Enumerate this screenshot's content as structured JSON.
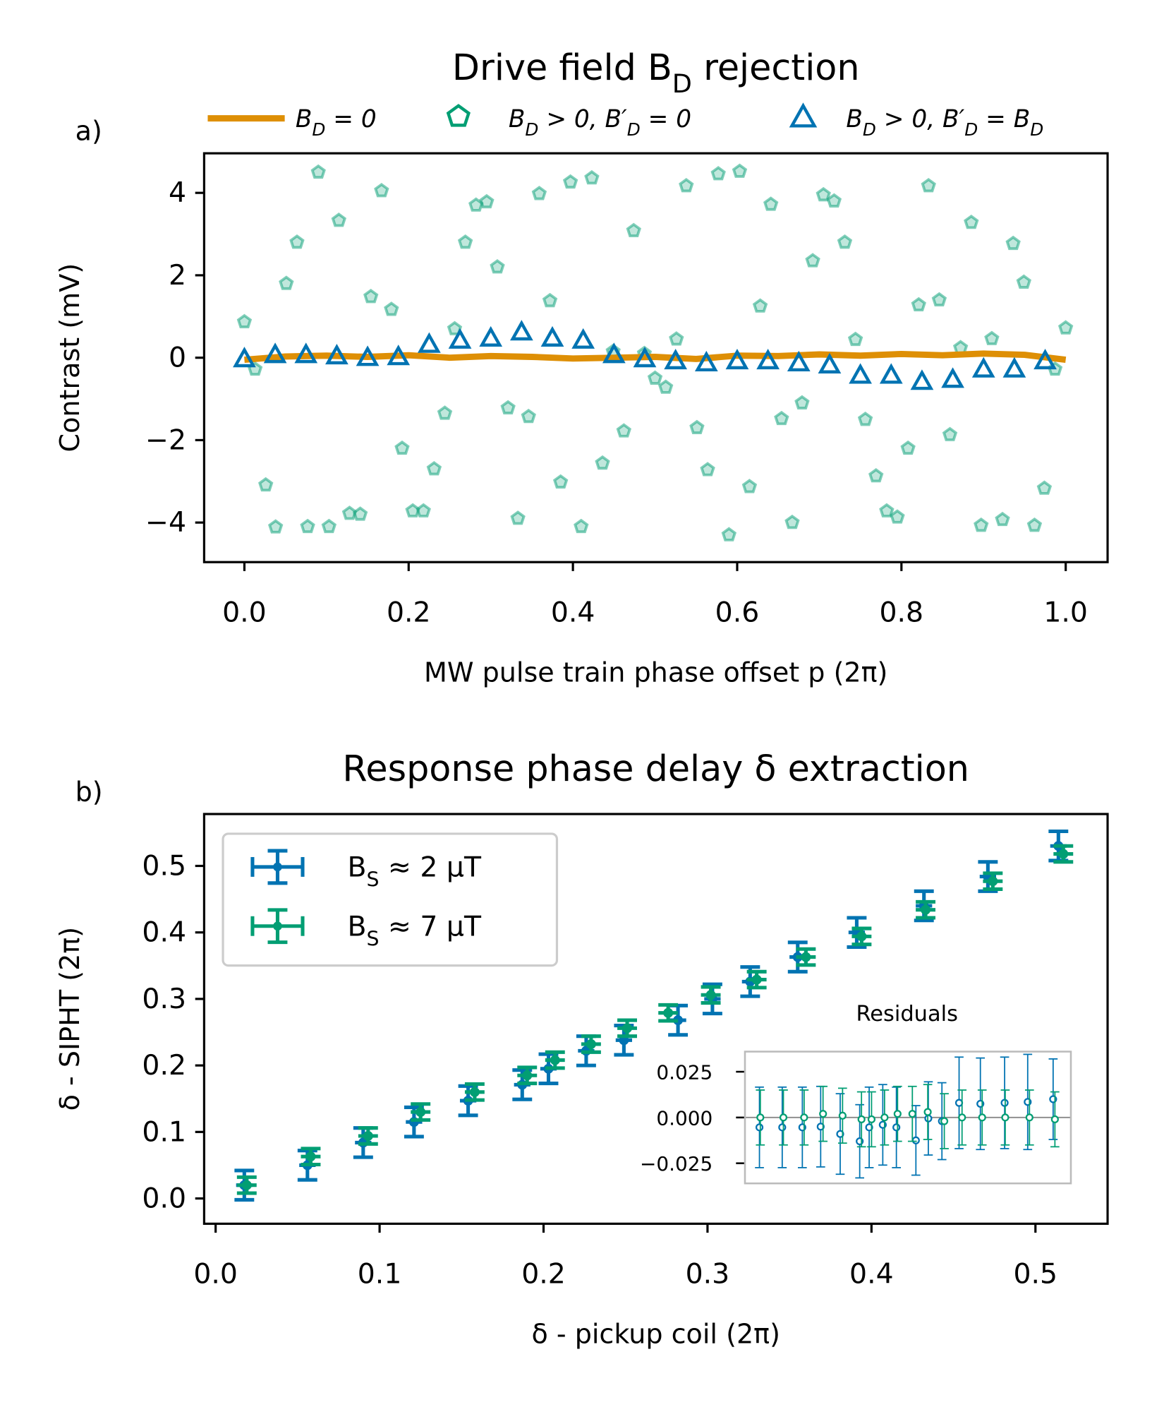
{
  "chart_data": [
    {
      "type": "scatter",
      "panel_label": "a)",
      "title": [
        "Drive field B",
        "D",
        " rejection"
      ],
      "xlabel": "MW pulse train phase offset p (2π)",
      "ylabel": "Contrast (mV)",
      "xlim": [
        -0.049,
        1.051
      ],
      "ylim": [
        -4.96,
        4.96
      ],
      "xticks": [
        {
          "value": 0,
          "label": "0.0"
        },
        {
          "value": 0.2,
          "label": "0.2"
        },
        {
          "value": 0.4,
          "label": "0.4"
        },
        {
          "value": 0.6,
          "label": "0.6"
        },
        {
          "value": 0.8,
          "label": "0.8"
        },
        {
          "value": 1,
          "label": "1.0"
        }
      ],
      "yticks": [
        {
          "value": -4,
          "label": "−4"
        },
        {
          "value": -2,
          "label": "−2"
        },
        0,
        2,
        4
      ],
      "legend": "top",
      "series": [
        {
          "name": [
            "B",
            "D",
            " = 0"
          ],
          "marker": "line",
          "color": "#de8f05",
          "x": [
            0,
            0.05,
            0.1,
            0.15,
            0.2,
            0.25,
            0.3,
            0.35,
            0.4,
            0.45,
            0.5,
            0.55,
            0.6,
            0.65,
            0.7,
            0.75,
            0.8,
            0.85,
            0.9,
            0.95,
            1
          ],
          "values": [
            -0.05,
            0.03,
            0.05,
            0.02,
            0.06,
            0.0,
            0.04,
            0.02,
            -0.02,
            0.0,
            0.02,
            -0.03,
            0.05,
            0.04,
            0.08,
            0.05,
            0.09,
            0.06,
            0.1,
            0.07,
            -0.05
          ]
        },
        {
          "name": [
            "B",
            "D",
            " > 0, B′",
            "D",
            " = 0"
          ],
          "marker": "pentagon",
          "color": "#029e73",
          "x": [
            0,
            0.013,
            0.026,
            0.038,
            0.051,
            0.064,
            0.077,
            0.09,
            0.103,
            0.115,
            0.128,
            0.141,
            0.154,
            0.167,
            0.179,
            0.192,
            0.205,
            0.218,
            0.231,
            0.244,
            0.256,
            0.269,
            0.282,
            0.295,
            0.308,
            0.321,
            0.333,
            0.346,
            0.359,
            0.372,
            0.385,
            0.397,
            0.41,
            0.423,
            0.436,
            0.449,
            0.462,
            0.474,
            0.487,
            0.5,
            0.513,
            0.526,
            0.538,
            0.551,
            0.564,
            0.577,
            0.59,
            0.603,
            0.615,
            0.628,
            0.641,
            0.654,
            0.667,
            0.679,
            0.692,
            0.705,
            0.718,
            0.731,
            0.744,
            0.756,
            0.769,
            0.782,
            0.795,
            0.808,
            0.821,
            0.833,
            0.846,
            0.859,
            0.872,
            0.885,
            0.897,
            0.91,
            0.923,
            0.936,
            0.949,
            0.962,
            0.974,
            0.987,
            1.0
          ],
          "values": [
            0.87,
            -0.28,
            -3.09,
            -4.11,
            1.8,
            2.8,
            -4.1,
            4.5,
            -4.1,
            3.33,
            -3.78,
            -3.8,
            1.48,
            4.05,
            1.17,
            -2.2,
            -3.72,
            -3.72,
            -2.7,
            -1.35,
            0.7,
            2.8,
            3.7,
            3.78,
            2.2,
            -1.22,
            -3.9,
            -1.43,
            3.98,
            1.38,
            -3.02,
            4.26,
            -4.1,
            4.36,
            -2.56,
            0.15,
            -1.78,
            3.08,
            0.1,
            -0.5,
            -0.72,
            0.45,
            4.17,
            -1.7,
            -2.72,
            4.46,
            -4.3,
            4.52,
            -3.13,
            1.25,
            3.72,
            -1.48,
            -4.0,
            -1.1,
            2.35,
            3.95,
            3.8,
            2.8,
            0.44,
            -1.5,
            -2.87,
            -3.72,
            -3.87,
            -2.2,
            1.28,
            4.17,
            1.4,
            -1.87,
            0.24,
            3.28,
            -4.07,
            0.46,
            -3.93,
            2.77,
            1.83,
            -4.07,
            -3.17,
            -0.28,
            0.72
          ]
        },
        {
          "name": [
            "B",
            "D",
            " > 0, B′",
            "D",
            " = B",
            "D"
          ],
          "marker": "triangle",
          "color": "#0173b2",
          "x": [
            0,
            0.0375,
            0.075,
            0.1125,
            0.15,
            0.1875,
            0.225,
            0.2625,
            0.3,
            0.3375,
            0.375,
            0.4125,
            0.45,
            0.4875,
            0.525,
            0.5625,
            0.6,
            0.6375,
            0.675,
            0.7125,
            0.75,
            0.7875,
            0.825,
            0.8625,
            0.9,
            0.9375,
            0.975
          ],
          "values": [
            -0.05,
            0.05,
            0.05,
            0.02,
            -0.02,
            0.0,
            0.3,
            0.4,
            0.45,
            0.6,
            0.45,
            0.4,
            0.05,
            -0.05,
            -0.1,
            -0.15,
            -0.1,
            -0.1,
            -0.15,
            -0.2,
            -0.45,
            -0.45,
            -0.6,
            -0.55,
            -0.3,
            -0.3,
            -0.1
          ]
        }
      ]
    },
    {
      "type": "errorbar",
      "panel_label": "b)",
      "title": "Response phase delay δ extraction",
      "xlabel": "δ - pickup coil (2π)",
      "ylabel": "δ - SIPHT (2π)",
      "xlim": [
        -0.007,
        0.544
      ],
      "ylim": [
        -0.038,
        0.578
      ],
      "xticks": [
        {
          "value": 0,
          "label": "0.0"
        },
        0.1,
        0.2,
        0.3,
        0.4,
        0.5
      ],
      "yticks": [
        {
          "value": 0,
          "label": "0.0"
        },
        0.1,
        0.2,
        0.3,
        0.4,
        0.5
      ],
      "legend": "upper left",
      "series": [
        {
          "name": [
            "B",
            "S",
            " ≈  2 μT"
          ],
          "color": "#0173b2",
          "x": [
            0.0175,
            0.056,
            0.09,
            0.121,
            0.154,
            0.187,
            0.203,
            0.226,
            0.249,
            0.282,
            0.303,
            0.326,
            0.355,
            0.391,
            0.432,
            0.471,
            0.514
          ],
          "values": [
            0.02,
            0.05,
            0.084,
            0.115,
            0.147,
            0.171,
            0.195,
            0.222,
            0.238,
            0.268,
            0.3,
            0.326,
            0.363,
            0.4,
            0.44,
            0.484,
            0.53
          ],
          "xerr": [
            0.005,
            0.005,
            0.005,
            0.005,
            0.005,
            0.005,
            0.005,
            0.005,
            0.005,
            0.005,
            0.005,
            0.005,
            0.005,
            0.005,
            0.005,
            0.005,
            0.005
          ],
          "yerr": [
            0.022,
            0.022,
            0.022,
            0.022,
            0.022,
            0.022,
            0.022,
            0.022,
            0.022,
            0.022,
            0.022,
            0.022,
            0.022,
            0.022,
            0.022,
            0.022,
            0.022
          ]
        },
        {
          "name": [
            "B",
            "S",
            " ≈  7 μT"
          ],
          "color": "#029e73",
          "x": [
            0.019,
            0.058,
            0.093,
            0.125,
            0.158,
            0.19,
            0.207,
            0.229,
            0.251,
            0.276,
            0.302,
            0.33,
            0.36,
            0.394,
            0.433,
            0.474,
            0.517
          ],
          "values": [
            0.02,
            0.063,
            0.094,
            0.13,
            0.16,
            0.185,
            0.208,
            0.232,
            0.256,
            0.279,
            0.306,
            0.329,
            0.363,
            0.394,
            0.434,
            0.477,
            0.518
          ],
          "xerr": [
            0.006,
            0.006,
            0.006,
            0.006,
            0.006,
            0.006,
            0.006,
            0.006,
            0.006,
            0.006,
            0.006,
            0.006,
            0.006,
            0.006,
            0.006,
            0.006,
            0.006
          ],
          "yerr": [
            0.012,
            0.012,
            0.012,
            0.012,
            0.012,
            0.012,
            0.012,
            0.012,
            0.012,
            0.012,
            0.012,
            0.012,
            0.012,
            0.012,
            0.012,
            0.012,
            0.012
          ]
        }
      ]
    },
    {
      "type": "errorbar",
      "title": "Residuals",
      "xlim": [
        -0.007,
        0.544
      ],
      "ylim": [
        -0.036,
        0.036
      ],
      "yticks": [
        {
          "value": -0.025,
          "label": "−0.025"
        },
        {
          "value": 0,
          "label": "0.000"
        },
        0.025
      ],
      "series": [
        {
          "color": "#0173b2",
          "x": [
            0.0175,
            0.056,
            0.09,
            0.121,
            0.154,
            0.187,
            0.203,
            0.226,
            0.249,
            0.282,
            0.303,
            0.326,
            0.355,
            0.391,
            0.432,
            0.471,
            0.514
          ],
          "values": [
            -0.0054,
            -0.0054,
            -0.0054,
            -0.005,
            -0.009,
            -0.013,
            -0.0054,
            -0.004,
            -0.0054,
            -0.0125,
            -0.0005,
            -0.002,
            0.008,
            0.0075,
            0.008,
            0.0085,
            0.01
          ],
          "yerr": [
            0.022,
            0.022,
            0.022,
            0.022,
            0.022,
            0.02,
            0.022,
            0.022,
            0.022,
            0.019,
            0.02,
            0.021,
            0.025,
            0.025,
            0.025,
            0.026,
            0.022
          ]
        },
        {
          "color": "#029e73",
          "x": [
            0.019,
            0.058,
            0.093,
            0.125,
            0.158,
            0.19,
            0.207,
            0.229,
            0.251,
            0.276,
            0.302,
            0.33,
            0.36,
            0.394,
            0.433,
            0.474,
            0.517
          ],
          "values": [
            0,
            0,
            0,
            0.002,
            0.001,
            -0.001,
            -0.001,
            0,
            0.002,
            0.002,
            0.003,
            -0.002,
            0,
            0,
            0,
            0,
            -0.001
          ],
          "yerr": [
            0.015,
            0.015,
            0.015,
            0.015,
            0.015,
            0.015,
            0.015,
            0.015,
            0.015,
            0.015,
            0.015,
            0.015,
            0.015,
            0.015,
            0.015,
            0.015,
            0.015
          ]
        }
      ]
    }
  ]
}
